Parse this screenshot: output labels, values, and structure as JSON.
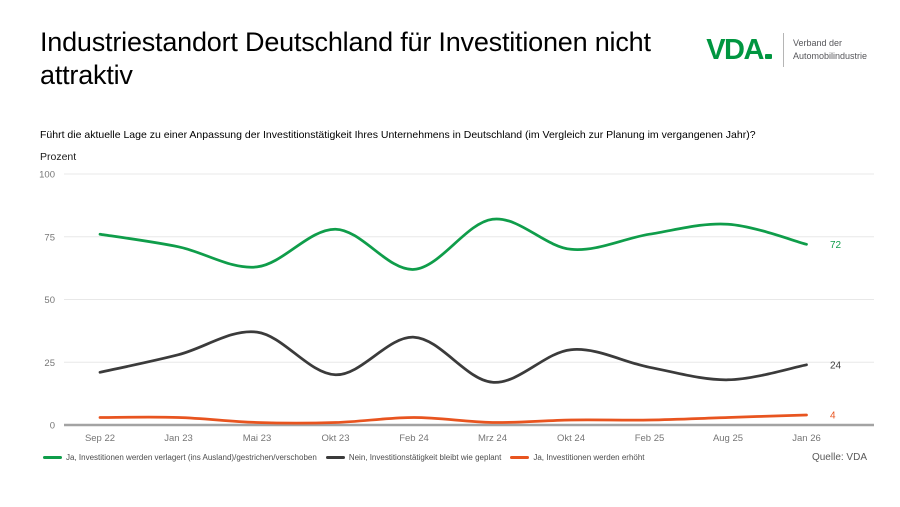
{
  "header": {
    "title": "Industriestandort Deutschland für Investitionen nicht attraktiv"
  },
  "logo": {
    "name": "VDA",
    "tagline_line1": "Verband der",
    "tagline_line2": "Automobilindustrie",
    "brand_color": "#009640"
  },
  "question": "Führt die aktuelle Lage zu einer Anpassung der Investitionstätigkeit Ihres Unternehmens in Deutschland (im Vergleich zur Planung im vergangenen Jahr)?",
  "unit_label": "Prozent",
  "source": "Quelle: VDA",
  "chart_data": {
    "type": "line",
    "title": "Industriestandort Deutschland für Investitionen nicht attraktiv",
    "ylabel": "Prozent",
    "xlabel": "",
    "ylim": [
      0,
      100
    ],
    "yticks": [
      0,
      25,
      50,
      75,
      100
    ],
    "grid": "horizontal",
    "legend_position": "bottom",
    "line_interpolation": "smooth",
    "categories": [
      "Sep 22",
      "Jan 23",
      "Mai 23",
      "Okt 23",
      "Feb 24",
      "Mrz 24",
      "Okt 24",
      "Feb 25",
      "Aug 25",
      "Jan 26"
    ],
    "series": [
      {
        "name": "Ja, Investitionen werden verlagert (ins Ausland)/gestrichen/verschoben",
        "color": "#0f9d4a",
        "values": [
          76,
          71,
          63,
          78,
          62,
          82,
          70,
          76,
          80,
          72
        ],
        "end_label": "72"
      },
      {
        "name": "Nein, Investitionstätigkeit bleibt wie geplant",
        "color": "#3b3b3b",
        "values": [
          21,
          28,
          37,
          20,
          35,
          17,
          30,
          23,
          18,
          24
        ],
        "end_label": "24"
      },
      {
        "name": "Ja, Investitionen werden erhöht",
        "color": "#e8541f",
        "values": [
          3,
          3,
          1,
          1,
          3,
          1,
          2,
          2,
          3,
          4
        ],
        "end_label": "4"
      }
    ],
    "axis_colors": {
      "gridline": "#e8e8e8",
      "axis_line": "#a3a3a3",
      "tick_text": "#767676"
    }
  }
}
